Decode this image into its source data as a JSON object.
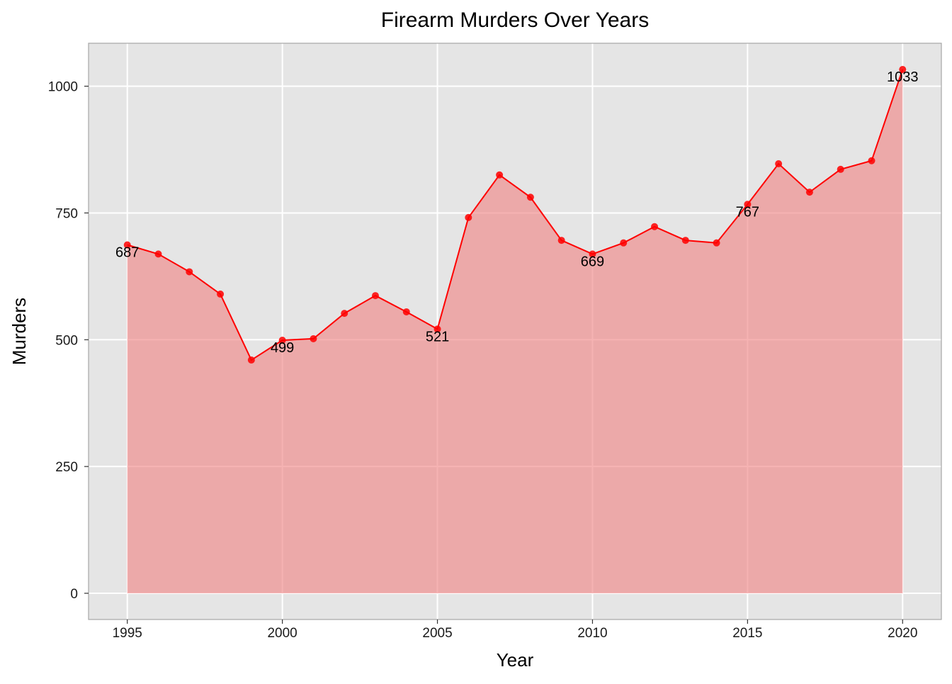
{
  "chart_data": {
    "type": "area",
    "title": "Firearm Murders Over Years",
    "xlabel": "Year",
    "ylabel": "Murders",
    "x": [
      1995,
      1996,
      1997,
      1998,
      1999,
      2000,
      2001,
      2002,
      2003,
      2004,
      2005,
      2006,
      2007,
      2008,
      2009,
      2010,
      2011,
      2012,
      2013,
      2014,
      2015,
      2016,
      2017,
      2018,
      2019,
      2020
    ],
    "series": [
      {
        "values": [
          687,
          669,
          634,
          590,
          460,
          499,
          502,
          552,
          587,
          555,
          521,
          741,
          825,
          781,
          696,
          669,
          691,
          723,
          696,
          691,
          767,
          847,
          791,
          836,
          853,
          1033
        ]
      }
    ],
    "labeled_points": [
      {
        "x": 1995,
        "label": "687"
      },
      {
        "x": 2000,
        "label": "499"
      },
      {
        "x": 2005,
        "label": "521"
      },
      {
        "x": 2010,
        "label": "669"
      },
      {
        "x": 2015,
        "label": "767"
      },
      {
        "x": 2020,
        "label": "1033"
      }
    ],
    "xlim": [
      1993.75,
      2021.25
    ],
    "ylim": [
      -51.7,
      1084.7
    ],
    "x_ticks": [
      1995,
      2000,
      2005,
      2010,
      2015,
      2020
    ],
    "y_ticks": [
      0,
      250,
      500,
      750,
      1000
    ],
    "grid": true,
    "colors": {
      "line": "#ff0000",
      "point": "#ff0000",
      "area_fill": "#f08080",
      "panel_background": "#e5e5e5",
      "grid": "#ffffff"
    }
  }
}
